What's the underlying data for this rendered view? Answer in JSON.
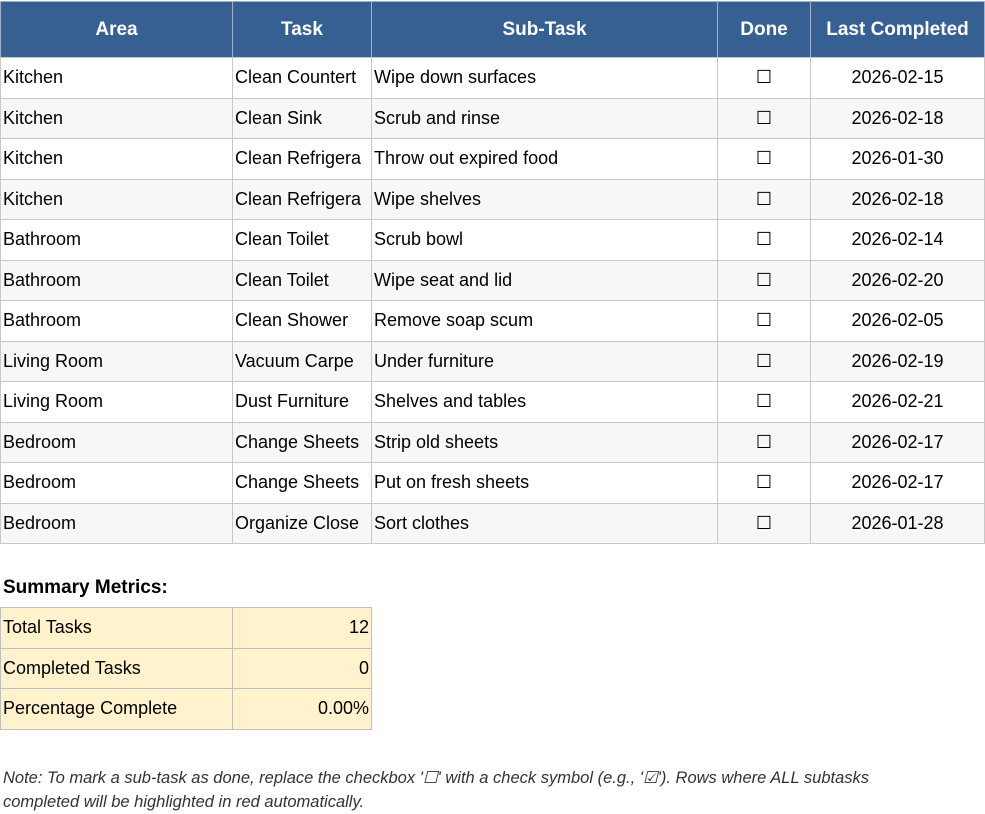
{
  "table": {
    "headers": [
      "Area",
      "Task",
      "Sub-Task",
      "Done",
      "Last Completed"
    ],
    "rows": [
      [
        "Kitchen",
        "Clean Countert",
        "Wipe down surfaces",
        "☐",
        "2026-02-15"
      ],
      [
        "Kitchen",
        "Clean Sink",
        "Scrub and rinse",
        "☐",
        "2026-02-18"
      ],
      [
        "Kitchen",
        "Clean Refrigera",
        "Throw out expired food",
        "☐",
        "2026-01-30"
      ],
      [
        "Kitchen",
        "Clean Refrigera",
        "Wipe shelves",
        "☐",
        "2026-02-18"
      ],
      [
        "Bathroom",
        "Clean Toilet",
        "Scrub bowl",
        "☐",
        "2026-02-14"
      ],
      [
        "Bathroom",
        "Clean Toilet",
        "Wipe seat and lid",
        "☐",
        "2026-02-20"
      ],
      [
        "Bathroom",
        "Clean Shower",
        "Remove soap scum",
        "☐",
        "2026-02-05"
      ],
      [
        "Living Room",
        "Vacuum Carpe",
        "Under furniture",
        "☐",
        "2026-02-19"
      ],
      [
        "Living Room",
        "Dust Furniture",
        "Shelves and tables",
        "☐",
        "2026-02-21"
      ],
      [
        "Bedroom",
        "Change Sheets",
        "Strip old sheets",
        "☐",
        "2026-02-17"
      ],
      [
        "Bedroom",
        "Change Sheets",
        "Put on fresh sheets",
        "☐",
        "2026-02-17"
      ],
      [
        "Bedroom",
        "Organize Close",
        "Sort clothes",
        "☐",
        "2026-01-28"
      ]
    ]
  },
  "summary": {
    "title": "Summary Metrics:",
    "rows": [
      [
        "Total Tasks",
        "12"
      ],
      [
        "Completed Tasks",
        "0"
      ],
      [
        "Percentage Complete",
        "0.00%"
      ]
    ]
  },
  "note": [
    "Note: To mark a sub-task as done, replace the checkbox '☐' with a check symbol (e.g., '☑'). Rows where ALL subtasks",
    "completed will be highlighted in red automatically."
  ]
}
